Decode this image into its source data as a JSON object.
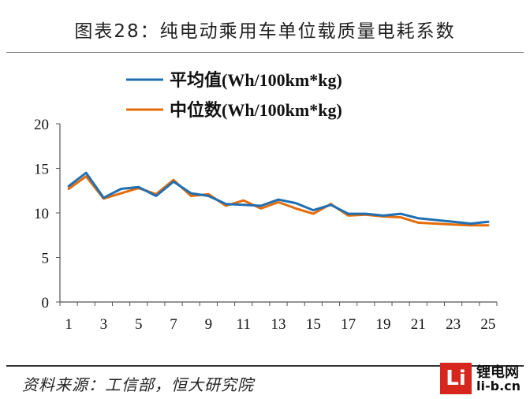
{
  "header": {
    "title": "图表28：纯电动乘用车单位载质量电耗系数"
  },
  "footer": {
    "source": "资料来源：工信部，恒大研究院"
  },
  "logo": {
    "mark": "Li",
    "name": "锂电网",
    "url": "li-b.cn"
  },
  "chart_data": {
    "type": "line",
    "title": "图表28：纯电动乘用车单位载质量电耗系数",
    "xlabel": "",
    "ylabel": "",
    "x": [
      1,
      2,
      3,
      4,
      5,
      6,
      7,
      8,
      9,
      10,
      11,
      12,
      13,
      14,
      15,
      16,
      17,
      18,
      19,
      20,
      21,
      22,
      23,
      24,
      25
    ],
    "x_tick_labels": [
      "1",
      "3",
      "5",
      "7",
      "9",
      "11",
      "13",
      "15",
      "17",
      "19",
      "21",
      "23",
      "25"
    ],
    "y_tick_labels": [
      "0",
      "5",
      "10",
      "15",
      "20"
    ],
    "ylim": [
      0,
      20
    ],
    "grid": false,
    "legend_position": "top",
    "series": [
      {
        "name": "平均值(Wh/100km*kg)",
        "color": "#1f6fb2",
        "values": [
          13.0,
          14.5,
          11.7,
          12.7,
          12.9,
          11.9,
          13.5,
          12.2,
          11.9,
          11.0,
          10.9,
          10.8,
          11.5,
          11.1,
          10.3,
          10.9,
          9.9,
          9.9,
          9.7,
          9.9,
          9.4,
          9.2,
          9.0,
          8.8,
          9.0
        ]
      },
      {
        "name": "中位数(Wh/100km*kg)",
        "color": "#e46c0a",
        "values": [
          12.7,
          14.1,
          11.6,
          12.2,
          12.8,
          12.1,
          13.7,
          11.9,
          12.1,
          10.8,
          11.4,
          10.5,
          11.2,
          10.5,
          9.9,
          11.0,
          9.7,
          9.8,
          9.6,
          9.5,
          8.9,
          8.8,
          8.7,
          8.6,
          8.6
        ]
      }
    ]
  }
}
